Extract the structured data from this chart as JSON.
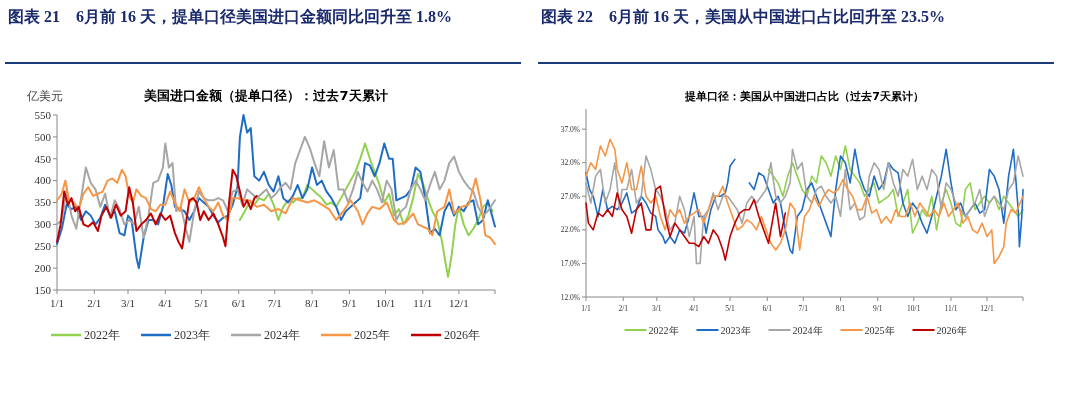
{
  "chart_data": [
    {
      "type": "line",
      "title": "图表 21　6月前 16 天，提单口径美国进口金额同比回升至 1.8%",
      "subtitle": "美国进口金额（提单口径）：过去7天累计",
      "ylabel": "亿美元",
      "xlim": [
        "--01-01",
        "--12-31"
      ],
      "ylim": [
        150,
        550
      ],
      "yticks": [
        150,
        200,
        250,
        300,
        350,
        400,
        450,
        500,
        550
      ],
      "xticks": [
        {
          "value": "--01-01",
          "label": "1/1"
        },
        {
          "value": "--02-01",
          "label": "2/1"
        },
        {
          "value": "--03-01",
          "label": "3/1"
        },
        {
          "value": "--04-01",
          "label": "4/1"
        },
        {
          "value": "--05-01",
          "label": "5/1"
        },
        {
          "value": "--06-01",
          "label": "6/1"
        },
        {
          "value": "--07-01",
          "label": "7/1"
        },
        {
          "value": "--08-01",
          "label": "8/1"
        },
        {
          "value": "--09-01",
          "label": "9/1"
        },
        {
          "value": "--10-01",
          "label": "10/1"
        },
        {
          "value": "--11-01",
          "label": "11/1"
        },
        {
          "value": "--12-01",
          "label": "12/1"
        }
      ],
      "legend": "bottom",
      "series": [
        {
          "name": "2022年",
          "color": "#92d050",
          "x": [
            "--06-02",
            "--06-06",
            "--06-10",
            "--06-14",
            "--06-18",
            "--06-22",
            "--06-26",
            "--06-30",
            "--07-04",
            "--07-08",
            "--07-12",
            "--07-16",
            "--07-20",
            "--07-24",
            "--07-28",
            "--08-01",
            "--08-05",
            "--08-09",
            "--08-13",
            "--08-17",
            "--08-21",
            "--08-25",
            "--08-29",
            "--09-02",
            "--09-06",
            "--09-10",
            "--09-14",
            "--09-18",
            "--09-22",
            "--09-26",
            "--09-30",
            "--10-04",
            "--10-08",
            "--10-12",
            "--10-16",
            "--10-20",
            "--10-24",
            "--10-28",
            "--11-01",
            "--11-05",
            "--11-09",
            "--11-13",
            "--11-17",
            "--11-20",
            "--11-22",
            "--11-25",
            "--11-28",
            "--12-01",
            "--12-05",
            "--12-09",
            "--12-13",
            "--12-17",
            "--12-21",
            "--12-25",
            "--12-29"
          ],
          "values": [
            310,
            330,
            350,
            345,
            360,
            355,
            370,
            345,
            310,
            340,
            355,
            350,
            360,
            360,
            390,
            380,
            370,
            360,
            345,
            350,
            340,
            360,
            380,
            400,
            420,
            450,
            485,
            450,
            420,
            390,
            350,
            370,
            320,
            335,
            300,
            320,
            360,
            415,
            395,
            360,
            330,
            310,
            260,
            210,
            180,
            230,
            300,
            340,
            300,
            275,
            290,
            310,
            340,
            350,
            330
          ]
        },
        {
          "name": "2023年",
          "color": "#1f6cc4",
          "x": [
            "--01-01",
            "--01-05",
            "--01-09",
            "--01-13",
            "--01-17",
            "--01-21",
            "--01-25",
            "--01-29",
            "--02-02",
            "--02-06",
            "--02-10",
            "--02-14",
            "--02-18",
            "--02-22",
            "--02-26",
            "--03-01",
            "--03-04",
            "--03-08",
            "--03-10",
            "--03-14",
            "--03-18",
            "--03-22",
            "--03-26",
            "--03-30",
            "--04-03",
            "--04-06",
            "--04-09",
            "--04-13",
            "--04-17",
            "--04-21",
            "--04-25",
            "--04-29",
            "--05-03",
            "--05-07",
            "--05-11",
            "--05-15",
            "--05-19",
            "--05-23",
            "--05-27",
            "--05-31",
            "--06-02",
            "--06-05",
            "--06-08",
            "--06-11",
            "--06-14",
            "--06-18",
            "--06-22",
            "--06-26",
            "--06-30",
            "--07-04",
            "--07-08",
            "--07-12",
            "--07-16",
            "--07-20",
            "--07-24",
            "--07-28",
            "--08-01",
            "--08-05",
            "--08-09",
            "--08-13",
            "--08-17",
            "--08-21",
            "--08-25",
            "--08-29",
            "--09-02",
            "--09-06",
            "--09-10",
            "--09-14",
            "--09-18",
            "--09-22",
            "--09-26",
            "--09-30",
            "--10-04",
            "--10-07",
            "--10-10",
            "--10-14",
            "--10-18",
            "--10-22",
            "--10-26",
            "--10-30",
            "--11-03",
            "--11-07",
            "--11-11",
            "--11-15",
            "--11-19",
            "--11-23",
            "--11-27",
            "--12-01",
            "--12-05",
            "--12-09",
            "--12-13",
            "--12-17",
            "--12-21",
            "--12-25",
            "--12-31"
          ],
          "values": [
            255,
            290,
            345,
            335,
            340,
            310,
            330,
            320,
            300,
            315,
            345,
            320,
            330,
            280,
            275,
            320,
            310,
            225,
            200,
            270,
            310,
            310,
            300,
            340,
            415,
            390,
            340,
            335,
            330,
            310,
            330,
            360,
            350,
            340,
            320,
            305,
            315,
            320,
            345,
            385,
            500,
            550,
            510,
            520,
            410,
            400,
            420,
            390,
            375,
            410,
            360,
            350,
            365,
            390,
            360,
            380,
            430,
            390,
            400,
            375,
            360,
            340,
            310,
            330,
            340,
            350,
            360,
            440,
            435,
            410,
            440,
            485,
            450,
            450,
            355,
            360,
            365,
            380,
            430,
            420,
            360,
            280,
            290,
            275,
            330,
            350,
            320,
            340,
            330,
            350,
            355,
            300,
            310,
            355,
            295
          ]
        },
        {
          "name": "2024年",
          "color": "#a6a6a6",
          "x": [
            "--01-01",
            "--01-05",
            "--01-09",
            "--01-13",
            "--01-17",
            "--01-21",
            "--01-25",
            "--01-29",
            "--02-02",
            "--02-06",
            "--02-10",
            "--02-14",
            "--02-18",
            "--02-22",
            "--02-26",
            "--03-02",
            "--03-06",
            "--03-10",
            "--03-14",
            "--03-18",
            "--03-22",
            "--03-26",
            "--03-30",
            "--04-01",
            "--04-04",
            "--04-07",
            "--04-10",
            "--04-14",
            "--04-18",
            "--04-21",
            "--04-25",
            "--04-29",
            "--05-03",
            "--05-07",
            "--05-11",
            "--05-15",
            "--05-19",
            "--05-23",
            "--05-27",
            "--05-31",
            "--06-04",
            "--06-08",
            "--06-12",
            "--06-16",
            "--06-20",
            "--06-24",
            "--06-28",
            "--07-02",
            "--07-06",
            "--07-10",
            "--07-14",
            "--07-18",
            "--07-22",
            "--07-26",
            "--07-30",
            "--08-03",
            "--08-07",
            "--08-11",
            "--08-15",
            "--08-19",
            "--08-23",
            "--08-27",
            "--08-31",
            "--09-04",
            "--09-08",
            "--09-12",
            "--09-16",
            "--09-20",
            "--09-24",
            "--09-28",
            "--10-02",
            "--10-06",
            "--10-10",
            "--10-14",
            "--10-18",
            "--10-22",
            "--10-26",
            "--10-30",
            "--11-03",
            "--11-07",
            "--11-11",
            "--11-15",
            "--11-19",
            "--11-23",
            "--11-27",
            "--12-01",
            "--12-05",
            "--12-09",
            "--12-13",
            "--12-17",
            "--12-21",
            "--12-25",
            "--12-31"
          ],
          "values": [
            300,
            310,
            380,
            320,
            290,
            360,
            430,
            395,
            380,
            340,
            370,
            315,
            355,
            335,
            300,
            310,
            300,
            340,
            270,
            320,
            395,
            400,
            430,
            485,
            430,
            440,
            330,
            340,
            290,
            260,
            330,
            375,
            360,
            355,
            355,
            360,
            355,
            330,
            375,
            380,
            345,
            380,
            370,
            360,
            370,
            380,
            360,
            370,
            385,
            395,
            380,
            440,
            470,
            500,
            475,
            440,
            410,
            490,
            430,
            470,
            380,
            380,
            350,
            380,
            420,
            395,
            375,
            400,
            380,
            350,
            400,
            380,
            310,
            330,
            340,
            380,
            400,
            380,
            355,
            390,
            420,
            380,
            400,
            440,
            455,
            420,
            400,
            385,
            375,
            340,
            320,
            330,
            355
          ]
        },
        {
          "name": "2025年",
          "color": "#f79646",
          "x": [
            "--01-01",
            "--01-05",
            "--01-08",
            "--01-11",
            "--01-15",
            "--01-19",
            "--01-23",
            "--01-27",
            "--01-31",
            "--02-04",
            "--02-08",
            "--02-12",
            "--02-16",
            "--02-20",
            "--02-24",
            "--02-27",
            "--03-02",
            "--03-05",
            "--03-08",
            "--03-12",
            "--03-16",
            "--03-20",
            "--03-24",
            "--03-28",
            "--04-01",
            "--04-05",
            "--04-09",
            "--04-13",
            "--04-17",
            "--04-21",
            "--04-25",
            "--04-29",
            "--05-03",
            "--05-07",
            "--05-11",
            "--05-15",
            "--05-19",
            "--05-23",
            "--05-27",
            "--05-31",
            "--06-05",
            "--06-10",
            "--06-16",
            "--06-22",
            "--06-28",
            "--07-04",
            "--07-10",
            "--07-16",
            "--07-22",
            "--07-28",
            "--08-03",
            "--08-09",
            "--08-15",
            "--08-21",
            "--08-27",
            "--09-02",
            "--09-08",
            "--09-12",
            "--09-16",
            "--09-20",
            "--09-26",
            "--10-02",
            "--10-08",
            "--10-12",
            "--10-18",
            "--10-24",
            "--10-28",
            "--11-01",
            "--11-05",
            "--11-09",
            "--11-13",
            "--11-19",
            "--11-23",
            "--11-27",
            "--12-03",
            "--12-09",
            "--12-15",
            "--12-19",
            "--12-23",
            "--12-27",
            "--12-31"
          ],
          "values": [
            355,
            370,
            400,
            355,
            350,
            335,
            370,
            385,
            365,
            370,
            375,
            400,
            405,
            395,
            425,
            410,
            365,
            350,
            380,
            365,
            360,
            335,
            330,
            345,
            345,
            375,
            350,
            330,
            380,
            350,
            360,
            385,
            360,
            340,
            330,
            350,
            320,
            310,
            360,
            360,
            355,
            355,
            340,
            345,
            330,
            335,
            325,
            360,
            355,
            350,
            355,
            345,
            335,
            310,
            330,
            355,
            330,
            300,
            325,
            340,
            335,
            350,
            310,
            300,
            305,
            325,
            300,
            295,
            290,
            275,
            330,
            340,
            380,
            325,
            340,
            345,
            405,
            355,
            275,
            270,
            255
          ]
        },
        {
          "name": "2026年",
          "color": "#c00000",
          "x": [
            "--01-01",
            "--01-04",
            "--01-07",
            "--01-10",
            "--01-13",
            "--01-16",
            "--01-19",
            "--01-23",
            "--01-27",
            "--01-31",
            "--02-04",
            "--02-07",
            "--02-11",
            "--02-15",
            "--02-19",
            "--02-23",
            "--02-27",
            "--03-02",
            "--03-05",
            "--03-08",
            "--03-12",
            "--03-16",
            "--03-20",
            "--03-24",
            "--03-28",
            "--04-01",
            "--04-05",
            "--04-09",
            "--04-12",
            "--04-15",
            "--04-18",
            "--04-21",
            "--04-24",
            "--04-27",
            "--04-30",
            "--05-03",
            "--05-07",
            "--05-11",
            "--05-15",
            "--05-19",
            "--05-21",
            "--05-24",
            "--05-27",
            "--05-30",
            "--06-02",
            "--06-05",
            "--06-08",
            "--06-11",
            "--06-14",
            "--06-16"
          ],
          "values": [
            260,
            300,
            375,
            345,
            360,
            330,
            340,
            300,
            295,
            305,
            285,
            320,
            340,
            315,
            345,
            320,
            330,
            385,
            350,
            285,
            300,
            310,
            325,
            300,
            325,
            310,
            320,
            280,
            260,
            245,
            300,
            355,
            360,
            350,
            310,
            330,
            310,
            325,
            300,
            270,
            250,
            350,
            425,
            410,
            375,
            340,
            355,
            335,
            360,
            365
          ]
        }
      ]
    },
    {
      "type": "line",
      "title": "图表 22　6月前 16 天，美国从中国进口占比回升至 23.5%",
      "subtitle": "提单口径：美国从中国进口占比（过去7天累计）",
      "xlim": [
        "--01-01",
        "--12-31"
      ],
      "ylim": [
        12,
        40
      ],
      "yticks": [
        {
          "value": 12,
          "label": "12.0%"
        },
        {
          "value": 17,
          "label": "17.0%"
        },
        {
          "value": 22,
          "label": "22.0%"
        },
        {
          "value": 27,
          "label": "27.0%"
        },
        {
          "value": 32,
          "label": "32.0%"
        },
        {
          "value": 37,
          "label": "37.0%"
        }
      ],
      "xticks": [
        {
          "value": "--01-01",
          "label": "1/1"
        },
        {
          "value": "--02-01",
          "label": "2/1"
        },
        {
          "value": "--03-01",
          "label": "3/1"
        },
        {
          "value": "--04-01",
          "label": "4/1"
        },
        {
          "value": "--05-01",
          "label": "5/1"
        },
        {
          "value": "--06-01",
          "label": "6/1"
        },
        {
          "value": "--07-01",
          "label": "7/1"
        },
        {
          "value": "--08-01",
          "label": "8/1"
        },
        {
          "value": "--09-01",
          "label": "9/1"
        },
        {
          "value": "--10-01",
          "label": "10/1"
        },
        {
          "value": "--11-01",
          "label": "11/1"
        },
        {
          "value": "--12-01",
          "label": "12/1"
        }
      ],
      "legend": "bottom",
      "series": [
        {
          "name": "2022年",
          "color": "#92d050",
          "x": [
            "--06-02",
            "--06-06",
            "--06-10",
            "--06-14",
            "--06-18",
            "--06-22",
            "--06-26",
            "--06-30",
            "--07-04",
            "--07-08",
            "--07-12",
            "--07-16",
            "--07-20",
            "--07-24",
            "--07-28",
            "--08-01",
            "--08-05",
            "--08-09",
            "--08-13",
            "--08-17",
            "--08-21",
            "--08-25",
            "--08-29",
            "--09-02",
            "--09-06",
            "--09-10",
            "--09-14",
            "--09-18",
            "--09-22",
            "--09-26",
            "--09-30",
            "--10-04",
            "--10-08",
            "--10-12",
            "--10-16",
            "--10-20",
            "--10-24",
            "--10-28",
            "--11-01",
            "--11-05",
            "--11-09",
            "--11-13",
            "--11-17",
            "--11-21",
            "--11-25",
            "--11-29",
            "--12-03",
            "--12-07",
            "--12-11",
            "--12-15",
            "--12-19",
            "--12-23",
            "--12-27",
            "--12-31"
          ],
          "values": [
            31,
            30,
            29,
            27,
            30,
            32,
            30,
            28,
            27,
            30,
            29,
            33,
            32,
            30,
            33,
            31,
            34.5,
            31,
            30,
            29,
            27,
            28,
            29,
            26,
            26.5,
            27,
            28,
            24,
            26,
            28,
            21.5,
            23,
            25,
            24,
            27,
            22,
            26,
            28,
            26,
            23,
            22.5,
            28,
            29,
            25,
            26,
            27,
            26,
            27,
            25,
            27,
            26,
            25,
            24,
            25
          ]
        },
        {
          "name": "2023年",
          "color": "#1f6cc4",
          "x": [
            "--01-01",
            "--01-04",
            "--01-07",
            "--01-11",
            "--01-15",
            "--01-19",
            "--01-23",
            "--01-27",
            "--01-31",
            "--02-04",
            "--02-08",
            "--02-12",
            "--02-16",
            "--02-20",
            "--02-24",
            "--02-28",
            "--03-02",
            "--03-06",
            "--03-08",
            "--03-12",
            "--03-16",
            "--03-20",
            "--03-24",
            "--03-28",
            "--04-01",
            "--04-05",
            "--04-09",
            "--04-11",
            "--04-15",
            "--04-19",
            "--04-23",
            "--04-27",
            "--04-29",
            "--05-01",
            "--05-05",
            "--05-11",
            "--05-17",
            "--05-21",
            "--05-25",
            "--05-29",
            "--06-02",
            "--06-06",
            "--06-10",
            "--06-12",
            "--06-16",
            "--06-20",
            "--06-22",
            "--06-26",
            "--06-30",
            "--07-04",
            "--07-08",
            "--07-12",
            "--07-16",
            "--07-20",
            "--07-24",
            "--07-28",
            "--08-01",
            "--08-05",
            "--08-09",
            "--08-13",
            "--08-17",
            "--08-21",
            "--08-25",
            "--08-29",
            "--09-02",
            "--09-06",
            "--09-10",
            "--09-14",
            "--09-18",
            "--09-22",
            "--09-26",
            "--09-30",
            "--10-04",
            "--10-08",
            "--10-12",
            "--10-16",
            "--10-20",
            "--10-24",
            "--10-28",
            "--11-01",
            "--11-05",
            "--11-09",
            "--11-13",
            "--11-17",
            "--11-21",
            "--11-25",
            "--11-29",
            "--12-03",
            "--12-07",
            "--12-11",
            "--12-15",
            "--12-19",
            "--12-23",
            "--12-27",
            "--12-28",
            "--12-30",
            "--12-31"
          ],
          "values": [
            30.5,
            28,
            27,
            24,
            28,
            25,
            25.5,
            25,
            26,
            27.5,
            24.5,
            25,
            27,
            26,
            24.5,
            24,
            22,
            21,
            20,
            21,
            20,
            22,
            21.5,
            24,
            27.5,
            24,
            24,
            21.5,
            25,
            27,
            27,
            27.5,
            29,
            31.5,
            32.5,
            null,
            29,
            28,
            30.5,
            30,
            28,
            26,
            27,
            26,
            22,
            19,
            18.5,
            24,
            25,
            28,
            29,
            27,
            25,
            23,
            21,
            28,
            33,
            32,
            29,
            34,
            30,
            28,
            27,
            30,
            28,
            29,
            32,
            31,
            30.5,
            26,
            24,
            26,
            25,
            23,
            21.5,
            24,
            27,
            30,
            34,
            29,
            25,
            26,
            24,
            25,
            26,
            24.5,
            25,
            31,
            30,
            28,
            23,
            30,
            34,
            25,
            19.5,
            24,
            28
          ]
        },
        {
          "name": "2024年",
          "color": "#a6a6a6",
          "x": [
            "--01-01",
            "--01-05",
            "--01-09",
            "--01-13",
            "--01-17",
            "--01-21",
            "--01-25",
            "--01-29",
            "--01-31",
            "--02-04",
            "--02-08",
            "--02-12",
            "--02-16",
            "--02-20",
            "--02-24",
            "--02-28",
            "--03-04",
            "--03-08",
            "--03-12",
            "--03-16",
            "--03-20",
            "--03-24",
            "--03-28",
            "--04-01",
            "--04-03",
            "--04-06",
            "--04-09",
            "--04-13",
            "--04-17",
            "--04-21",
            "--04-25",
            "--04-29",
            "--05-03",
            "--05-07",
            "--05-11",
            "--05-15",
            "--05-19",
            "--05-23",
            "--05-27",
            "--05-31",
            "--06-04",
            "--06-08",
            "--06-12",
            "--06-16",
            "--06-20",
            "--06-22",
            "--06-26",
            "--06-30",
            "--07-04",
            "--07-08",
            "--07-12",
            "--07-16",
            "--07-20",
            "--07-24",
            "--07-28",
            "--08-01",
            "--08-05",
            "--08-09",
            "--08-13",
            "--08-17",
            "--08-21",
            "--08-25",
            "--08-29",
            "--09-02",
            "--09-06",
            "--09-10",
            "--09-14",
            "--09-18",
            "--09-22",
            "--09-26",
            "--09-30",
            "--10-04",
            "--10-08",
            "--10-12",
            "--10-16",
            "--10-20",
            "--10-24",
            "--10-28",
            "--11-01",
            "--11-05",
            "--11-09",
            "--11-13",
            "--11-17",
            "--11-21",
            "--11-25",
            "--11-29",
            "--12-03",
            "--12-07",
            "--12-11",
            "--12-15",
            "--12-19",
            "--12-23",
            "--12-27",
            "--12-31"
          ],
          "values": [
            29,
            26,
            30,
            31,
            26,
            28,
            32,
            25,
            28,
            28,
            31,
            26,
            27,
            33,
            31,
            28,
            27,
            25,
            22,
            23,
            27,
            25,
            21,
            24,
            17,
            17,
            24,
            25,
            27.5,
            25,
            27,
            27,
            26,
            25,
            23,
            26,
            27,
            26,
            27,
            28,
            32,
            27,
            26,
            27,
            29,
            34,
            31,
            32,
            27,
            26,
            28,
            28.5,
            27,
            26,
            27,
            24,
            31,
            25,
            26,
            23.5,
            24,
            30,
            32,
            31,
            28,
            32,
            29,
            27,
            31,
            30,
            32.5,
            28,
            30,
            28,
            31,
            30,
            25,
            29,
            28,
            26,
            25,
            24,
            25,
            26,
            28,
            24,
            26,
            27,
            26,
            25,
            28,
            29,
            33,
            30
          ]
        },
        {
          "name": "2025年",
          "color": "#f79646",
          "x": [
            "--01-01",
            "--01-05",
            "--01-09",
            "--01-13",
            "--01-17",
            "--01-21",
            "--01-25",
            "--01-27",
            "--01-31",
            "--02-04",
            "--02-08",
            "--02-12",
            "--02-16",
            "--02-20",
            "--02-24",
            "--02-28",
            "--03-04",
            "--03-08",
            "--03-12",
            "--03-16",
            "--03-20",
            "--03-24",
            "--03-28",
            "--04-01",
            "--04-05",
            "--04-09",
            "--04-13",
            "--04-17",
            "--04-21",
            "--04-25",
            "--04-29",
            "--05-03",
            "--05-07",
            "--05-11",
            "--05-15",
            "--05-19",
            "--05-23",
            "--05-27",
            "--05-31",
            "--06-04",
            "--06-08",
            "--06-12",
            "--06-16",
            "--06-20",
            "--06-24",
            "--06-28",
            "--07-02",
            "--07-06",
            "--07-10",
            "--07-14",
            "--07-18",
            "--07-22",
            "--07-26",
            "--07-30",
            "--08-03",
            "--08-07",
            "--08-11",
            "--08-15",
            "--08-19",
            "--08-23",
            "--08-27",
            "--08-31",
            "--09-04",
            "--09-08",
            "--09-12",
            "--09-16",
            "--09-20",
            "--09-24",
            "--09-28",
            "--10-02",
            "--10-06",
            "--10-10",
            "--10-14",
            "--10-18",
            "--10-22",
            "--10-26",
            "--10-30",
            "--11-03",
            "--11-07",
            "--11-11",
            "--11-15",
            "--11-19",
            "--11-23",
            "--11-27",
            "--12-01",
            "--12-05",
            "--12-07",
            "--12-11",
            "--12-15",
            "--12-17",
            "--12-21",
            "--12-25",
            "--12-31"
          ],
          "values": [
            30,
            32,
            31,
            34.5,
            33,
            35.5,
            34,
            31,
            29,
            32,
            28,
            28,
            31.5,
            27,
            26,
            27,
            24,
            22,
            25,
            24,
            25,
            23,
            24,
            24.5,
            25,
            23,
            25,
            27,
            27,
            28.5,
            26,
            24,
            22,
            22.5,
            23.5,
            23,
            22,
            24,
            22,
            20,
            19,
            20,
            22,
            26,
            25,
            19,
            24,
            25,
            27,
            25.5,
            27,
            28,
            27.5,
            28,
            29.5,
            28,
            27,
            25,
            25,
            27,
            24.5,
            25,
            23,
            24,
            23,
            25,
            24,
            24,
            26,
            24,
            26,
            25,
            24,
            25,
            24,
            26,
            24,
            25,
            26,
            23,
            24,
            22,
            21.5,
            23,
            21,
            22,
            17,
            18,
            19.5,
            23,
            25,
            24.5,
            27
          ]
        },
        {
          "name": "2026年",
          "color": "#c00000",
          "x": [
            "--01-01",
            "--01-03",
            "--01-07",
            "--01-11",
            "--01-15",
            "--01-19",
            "--01-23",
            "--01-27",
            "--01-31",
            "--02-04",
            "--02-08",
            "--02-12",
            "--02-16",
            "--02-20",
            "--02-24",
            "--02-28",
            "--03-04",
            "--03-08",
            "--03-12",
            "--03-16",
            "--03-20",
            "--03-24",
            "--03-28",
            "--04-01",
            "--04-05",
            "--04-09",
            "--04-13",
            "--04-17",
            "--04-21",
            "--04-25",
            "--04-27",
            "--05-01",
            "--05-05",
            "--05-09",
            "--05-13",
            "--05-17",
            "--05-21",
            "--05-25",
            "--05-29",
            "--06-02",
            "--06-06",
            "--06-08",
            "--06-12",
            "--06-16"
          ],
          "values": [
            26,
            23,
            22,
            24.5,
            24,
            25,
            24,
            27.5,
            25,
            24,
            21.5,
            25,
            26,
            22,
            22,
            28,
            28.5,
            24,
            21,
            23,
            22,
            21,
            20,
            20,
            19.5,
            21,
            20,
            22,
            21,
            19,
            17.5,
            21,
            23,
            24.5,
            25,
            25,
            26.5,
            24,
            22,
            20,
            24,
            26,
            21,
            24.5
          ]
        }
      ]
    }
  ]
}
